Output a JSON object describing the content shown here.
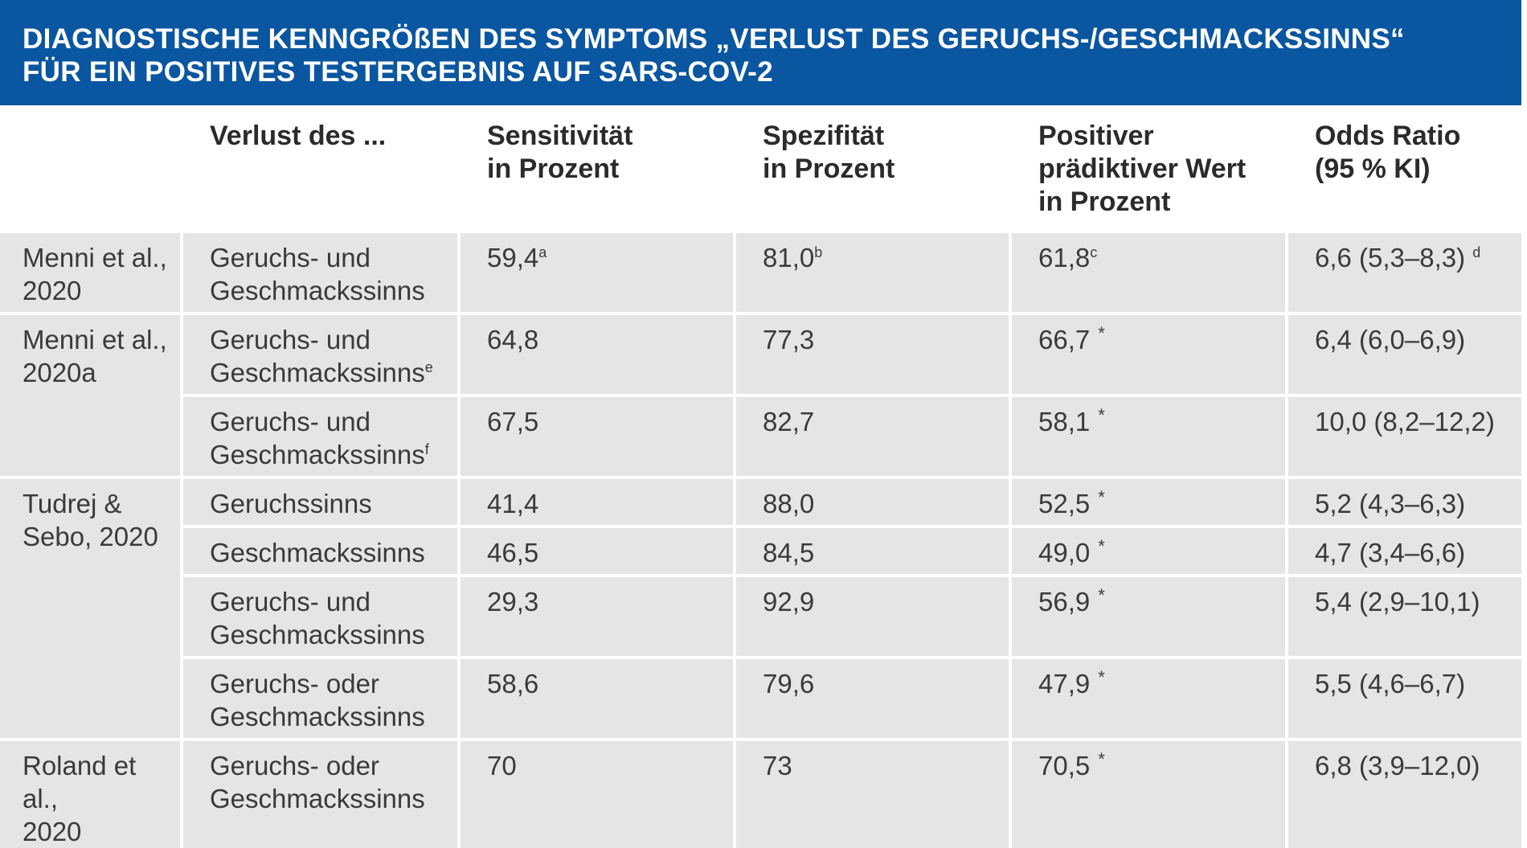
{
  "title": {
    "line1": "DIAGNOSTISCHE KENNGRÖßEN DES SYMPTOMS „VERLUST DES GERUCHS-/GESCHMACKSSINNS“",
    "line2": "FÜR EIN POSITIVES TESTERGEBNIS AUF SARS-COV-2"
  },
  "headers": [
    "",
    "Verlust des ...",
    "Sensitivität\nin Prozent",
    "Spezifität\nin Prozent",
    "Positiver\nprädiktiver Wert\nin Prozent",
    "Odds Ratio\n(95 % KI)"
  ],
  "studies": [
    "Menni et al.,\n2020",
    "Menni et al.,\n2020a",
    "Tudrej &\nSebo, 2020",
    "Roland et al.,\n2020"
  ],
  "rows": [
    {
      "loss": "Geruchs- und\nGeschmackssinns",
      "loss_sup": "",
      "sens": "59,4",
      "sens_sup": "a",
      "spec": "81,0",
      "spec_sup": "b",
      "ppv": "61,8",
      "ppv_sup": "c",
      "ppv_star": "",
      "or": "6,6 (5,3–8,3)",
      "or_sup": "d"
    },
    {
      "loss": "Geruchs- und\nGeschmackssinns",
      "loss_sup": "e",
      "sens": "64,8",
      "sens_sup": "",
      "spec": "77,3",
      "spec_sup": "",
      "ppv": "66,7",
      "ppv_sup": "",
      "ppv_star": "*",
      "or": "6,4 (6,0–6,9)",
      "or_sup": ""
    },
    {
      "loss": "Geruchs- und\nGeschmackssinns",
      "loss_sup": "f",
      "sens": "67,5",
      "sens_sup": "",
      "spec": "82,7",
      "spec_sup": "",
      "ppv": "58,1",
      "ppv_sup": "",
      "ppv_star": "*",
      "or": "10,0 (8,2–12,2)",
      "or_sup": ""
    },
    {
      "loss": "Geruchssinns",
      "loss_sup": "",
      "sens": "41,4",
      "sens_sup": "",
      "spec": "88,0",
      "spec_sup": "",
      "ppv": "52,5",
      "ppv_sup": "",
      "ppv_star": "*",
      "or": "5,2 (4,3–6,3)",
      "or_sup": ""
    },
    {
      "loss": "Geschmackssinns",
      "loss_sup": "",
      "sens": "46,5",
      "sens_sup": "",
      "spec": "84,5",
      "spec_sup": "",
      "ppv": "49,0",
      "ppv_sup": "",
      "ppv_star": "*",
      "or": "4,7 (3,4–6,6)",
      "or_sup": ""
    },
    {
      "loss": "Geruchs- und\nGeschmackssinns",
      "loss_sup": "",
      "sens": "29,3",
      "sens_sup": "",
      "spec": "92,9",
      "spec_sup": "",
      "ppv": "56,9",
      "ppv_sup": "",
      "ppv_star": "*",
      "or": "5,4 (2,9–10,1)",
      "or_sup": ""
    },
    {
      "loss": "Geruchs- oder\nGeschmackssinns",
      "loss_sup": "",
      "sens": "58,6",
      "sens_sup": "",
      "spec": "79,6",
      "spec_sup": "",
      "ppv": "47,9",
      "ppv_sup": "",
      "ppv_star": "*",
      "or": "5,5 (4,6–6,7)",
      "or_sup": ""
    },
    {
      "loss": "Geruchs- oder\nGeschmackssinns",
      "loss_sup": "",
      "sens": "70",
      "sens_sup": "",
      "spec": "73",
      "spec_sup": "",
      "ppv": "70,5",
      "ppv_sup": "",
      "ppv_star": "*",
      "or": "6,8 (3,9–12,0)",
      "or_sup": ""
    }
  ]
}
